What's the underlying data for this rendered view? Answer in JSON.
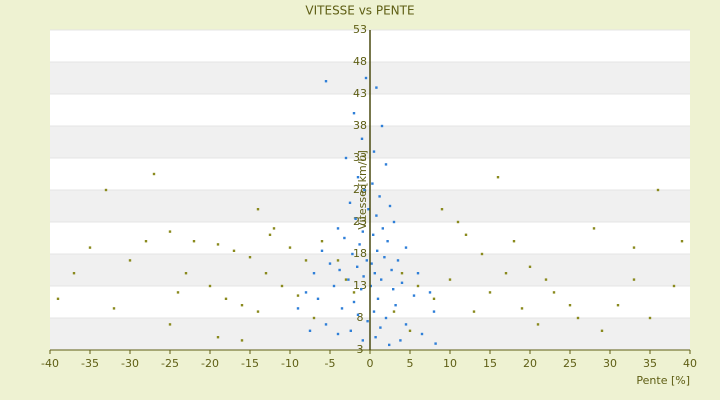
{
  "chart_data": {
    "type": "scatter",
    "title": "VITESSE vs PENTE",
    "x_label": "Pente [%]",
    "y_label": "Vitesse [km/h]",
    "xlim": [
      -40,
      40
    ],
    "xticks": [
      -40,
      -35,
      -30,
      -25,
      -20,
      -15,
      -10,
      -5,
      0,
      5,
      10,
      15,
      20,
      25,
      30,
      35,
      40
    ],
    "ylim": [
      3,
      53
    ],
    "yticks": [
      3,
      8,
      13,
      18,
      23,
      28,
      33,
      38,
      43,
      48,
      53
    ],
    "series": [
      {
        "color": "#8a8a1e",
        "x": [
          -33,
          -27,
          -25,
          -22,
          -19,
          -17,
          -15,
          -13,
          -11,
          -9,
          -12,
          -10,
          -8,
          -14,
          -12.5,
          -35,
          -30,
          -28,
          -23,
          -20,
          -18,
          -16,
          -14,
          -39,
          -37,
          -32,
          -24,
          -19,
          -16,
          -7,
          -6,
          -4,
          -3,
          -2,
          16,
          22,
          25,
          28,
          33,
          36,
          38,
          14,
          12,
          11,
          9,
          18,
          20,
          23,
          26,
          29,
          31,
          35,
          39,
          13,
          15,
          17,
          19,
          10,
          8,
          6,
          4,
          3,
          5,
          -25,
          21,
          33
        ],
        "y": [
          28,
          30.5,
          21.5,
          20,
          19.5,
          18.5,
          17.5,
          15,
          13,
          11.5,
          22,
          19,
          17,
          25,
          21,
          19,
          17,
          20,
          15,
          13,
          11,
          10,
          9,
          11,
          15,
          9.5,
          12,
          5,
          4.5,
          8,
          20,
          17,
          14,
          12,
          30,
          14,
          10,
          22,
          19,
          28,
          13,
          18,
          21,
          23,
          25,
          20,
          16,
          12,
          8,
          6,
          10,
          8,
          20,
          9,
          12,
          15,
          9.5,
          14,
          11,
          13,
          15,
          9,
          6,
          7,
          7,
          14
        ]
      },
      {
        "color": "#2f7fd8",
        "x": [
          -0.5,
          -5.5,
          0.8,
          -2,
          1.5,
          -1,
          0.5,
          -3,
          2,
          -1.5,
          0.3,
          -0.7,
          1.2,
          -2.5,
          2.5,
          -0.2,
          0.8,
          -1.8,
          3,
          -4,
          1.6,
          -0.9,
          0.4,
          -3.2,
          2.2,
          -1.3,
          4.5,
          -6,
          0.9,
          -2.2,
          1.8,
          -0.4,
          3.5,
          -5,
          0.2,
          -1.6,
          2.7,
          -3.8,
          6,
          -7,
          0.6,
          -0.8,
          1.4,
          -2.7,
          4,
          -4.5,
          0.1,
          2.9,
          -1.1,
          -8,
          7.5,
          5.5,
          -6.5,
          1,
          -2,
          3.2,
          -3.5,
          0.5,
          8,
          -9,
          -1.5,
          2,
          -0.3,
          4.5,
          -5.5,
          1.3,
          -2.4,
          6.5,
          0.7,
          -0.9,
          3.8,
          -4,
          8.2,
          -7.5,
          2.4
        ],
        "y": [
          45.5,
          45,
          44,
          40,
          38,
          36,
          34,
          33,
          32,
          30,
          29,
          28,
          27,
          26,
          25.5,
          25,
          24,
          23.5,
          23,
          22,
          22,
          21.5,
          21,
          20.5,
          20,
          19.5,
          19,
          18.5,
          18.5,
          18,
          17.5,
          17,
          17,
          16.5,
          16.5,
          16,
          15.5,
          15.5,
          15,
          15,
          15,
          14.5,
          14,
          14,
          13.5,
          13,
          13,
          12.5,
          12.5,
          12,
          12,
          11.5,
          11,
          11,
          10.5,
          10,
          9.5,
          9,
          9,
          9.5,
          8.5,
          8,
          7.5,
          7,
          7,
          6.5,
          6,
          5.5,
          5,
          4.5,
          4.5,
          5.5,
          4,
          6,
          3.8
        ]
      }
    ]
  }
}
